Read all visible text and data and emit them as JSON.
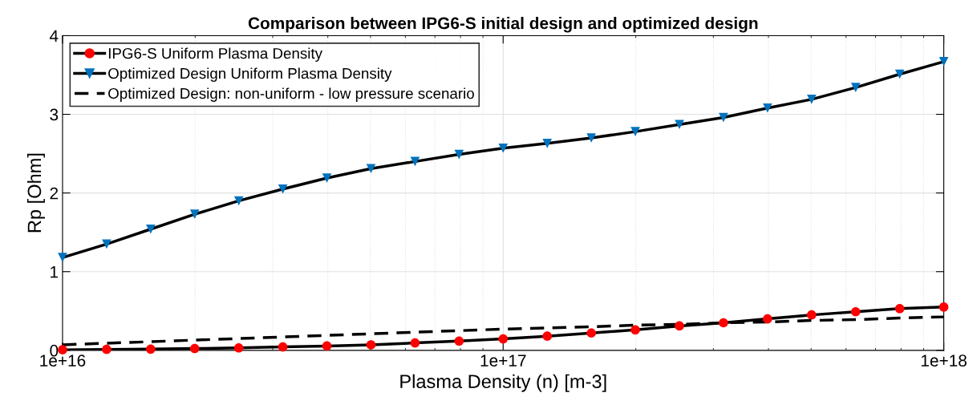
{
  "chart_data": {
    "type": "line",
    "title": "Comparison between IPG6-S initial design and optimized design",
    "xlabel": "Plasma Density (n) [m-3]",
    "ylabel": "Rp [Ohm]",
    "x": [
      1e+16,
      1.259e+16,
      1.585e+16,
      1.995e+16,
      2.512e+16,
      3.162e+16,
      3.981e+16,
      5.012e+16,
      6.31e+16,
      7.943e+16,
      1e+17,
      1.259e+17,
      1.585e+17,
      1.995e+17,
      2.512e+17,
      3.162e+17,
      3.981e+17,
      5.012e+17,
      6.31e+17,
      7.943e+17,
      1e+18
    ],
    "series": [
      {
        "name": "IPG6-S Uniform Plasma Density",
        "color": "#000000",
        "marker": "circle",
        "line_style": "solid",
        "colors": [
          "#ff0000",
          "#ff0000",
          "#ff0000",
          "#ff0000",
          "#ff0000",
          "#ff0000",
          "#ff0000",
          "#ff0000",
          "#ff0000",
          "#ff0000",
          "#ff0000",
          "#ff0000",
          "#ff0000",
          "#ff0000",
          "#ff0000",
          "#ff0000",
          "#ff0000",
          "#ff0000",
          "#ff0000",
          "#ff0000",
          "#ff0000"
        ],
        "values": [
          0.007,
          0.012,
          0.015,
          0.023,
          0.031,
          0.043,
          0.055,
          0.07,
          0.094,
          0.117,
          0.145,
          0.18,
          0.22,
          0.26,
          0.31,
          0.35,
          0.4,
          0.45,
          0.49,
          0.53,
          0.55
        ]
      },
      {
        "name": "Optimized Design Uniform Plasma Density",
        "color": "#000000",
        "marker": "triangle",
        "line_style": "solid",
        "colors": [
          "#0072bd",
          "#0072bd",
          "#0072bd",
          "#0072bd",
          "#0072bd",
          "#0072bd",
          "#0072bd",
          "#0072bd",
          "#0072bd",
          "#0072bd",
          "#0072bd",
          "#0072bd",
          "#0072bd",
          "#0072bd",
          "#0072bd",
          "#0072bd",
          "#0072bd",
          "#0072bd",
          "#0072bd",
          "#0072bd",
          "#0072bd"
        ],
        "values": [
          1.18,
          1.35,
          1.54,
          1.73,
          1.9,
          2.05,
          2.19,
          2.31,
          2.4,
          2.49,
          2.57,
          2.63,
          2.7,
          2.78,
          2.87,
          2.96,
          3.08,
          3.19,
          3.34,
          3.51,
          3.67
        ]
      },
      {
        "name": "Optimized Design: non-uniform - low pressure scenario",
        "color": "#000000",
        "marker": "none",
        "line_style": "dashed",
        "values": [
          0.07,
          0.09,
          0.11,
          0.13,
          0.15,
          0.17,
          0.19,
          0.21,
          0.23,
          0.25,
          0.27,
          0.285,
          0.3,
          0.32,
          0.33,
          0.35,
          0.36,
          0.38,
          0.39,
          0.41,
          0.425
        ]
      }
    ],
    "log": "x",
    "xlim": [
      1e+16,
      1e+18
    ],
    "xticks": [
      {
        "value": 1e+16,
        "label": "1e+16"
      },
      {
        "value": 1e+17,
        "label": "1e+17"
      },
      {
        "value": 1e+18,
        "label": "1e+18"
      }
    ],
    "ylim": [
      0,
      4
    ],
    "yticks": [
      0,
      1,
      2,
      3,
      4
    ],
    "grid": true,
    "legend": "top left"
  }
}
